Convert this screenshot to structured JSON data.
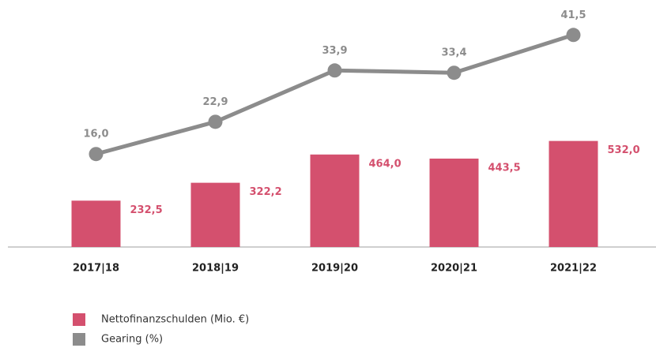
{
  "chart_data": {
    "type": "bar_line",
    "categories": [
      "2017|18",
      "2018|19",
      "2019|20",
      "2020|21",
      "2021|22"
    ],
    "series": [
      {
        "name": "Nettofinanzschulden (Mio. €)",
        "type": "bar",
        "color": "#d4506e",
        "values": [
          232.5,
          322.2,
          464.0,
          443.5,
          532.0
        ],
        "value_labels": [
          "232,5",
          "322,2",
          "464,0",
          "443,5",
          "532,0"
        ]
      },
      {
        "name": "Gearing (%)",
        "type": "line",
        "axis": "y2",
        "color": "#8c8c8c",
        "values": [
          16.0,
          22.9,
          33.9,
          33.4,
          41.5
        ],
        "value_labels": [
          "16,0",
          "22,9",
          "33,9",
          "33,4",
          "41,5"
        ]
      }
    ],
    "ylim": [
      0,
      1160
    ],
    "y2lim": [
      -3.9,
      45.6
    ],
    "grid": false
  }
}
